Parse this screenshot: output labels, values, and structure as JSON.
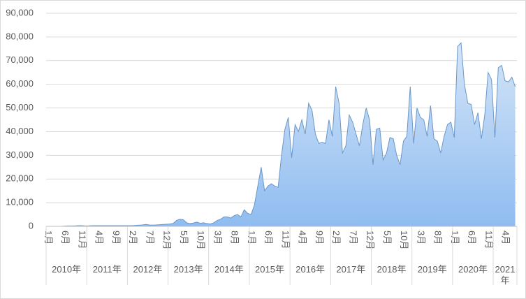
{
  "chart_data": {
    "type": "area",
    "categories": [
      "1月",
      null,
      null,
      null,
      null,
      "6月",
      null,
      null,
      null,
      null,
      "11月",
      null,
      null,
      null,
      null,
      "4月",
      null,
      null,
      null,
      null,
      "9月",
      null,
      null,
      null,
      null,
      "2月",
      null,
      null,
      null,
      null,
      "7月",
      null,
      null,
      null,
      null,
      "12月",
      null,
      null,
      null,
      null,
      "5月",
      null,
      null,
      null,
      null,
      "10月",
      null,
      null,
      null,
      null,
      "3月",
      null,
      null,
      null,
      null,
      "8月",
      null,
      null,
      null,
      null,
      "1月",
      null,
      null,
      null,
      null,
      "6月",
      null,
      null,
      null,
      null,
      "11月",
      null,
      null,
      null,
      null,
      "4月",
      null,
      null,
      null,
      null,
      "9月",
      null,
      null,
      null,
      null,
      "2月",
      null,
      null,
      null,
      null,
      "7月",
      null,
      null,
      null,
      null,
      "12月",
      null,
      null,
      null,
      null,
      "5月",
      null,
      null,
      null,
      null,
      "10月",
      null,
      null,
      null,
      null,
      "3月",
      null,
      null,
      null,
      null,
      "8月",
      null,
      null,
      null,
      null,
      "1月",
      null,
      null,
      null,
      null,
      "6月",
      null,
      null,
      null,
      null,
      "11月",
      null,
      null,
      null,
      null,
      "4月",
      null,
      null,
      null
    ],
    "year_groups": [
      {
        "label": "2010年",
        "months": 12
      },
      {
        "label": "2011年",
        "months": 12
      },
      {
        "label": "2012年",
        "months": 12
      },
      {
        "label": "2013年",
        "months": 12
      },
      {
        "label": "2014年",
        "months": 12
      },
      {
        "label": "2015年",
        "months": 12
      },
      {
        "label": "2016年",
        "months": 12
      },
      {
        "label": "2017年",
        "months": 12
      },
      {
        "label": "2018年",
        "months": 12
      },
      {
        "label": "2019年",
        "months": 12
      },
      {
        "label": "2020年",
        "months": 12
      },
      {
        "label": "2021年",
        "months": 7
      }
    ],
    "values": [
      0,
      0,
      0,
      0,
      0,
      100,
      200,
      200,
      200,
      300,
      300,
      200,
      200,
      300,
      300,
      300,
      300,
      300,
      300,
      300,
      300,
      300,
      300,
      300,
      300,
      300,
      400,
      500,
      600,
      800,
      600,
      500,
      600,
      700,
      800,
      900,
      1000,
      1200,
      2500,
      3000,
      2800,
      1500,
      1200,
      1400,
      1800,
      1300,
      1500,
      1200,
      1000,
      1500,
      2500,
      3000,
      4000,
      4000,
      3500,
      4500,
      5000,
      4000,
      7000,
      5500,
      5000,
      9000,
      17000,
      25000,
      15000,
      17000,
      18000,
      17000,
      16500,
      30000,
      41000,
      46000,
      29000,
      43000,
      40000,
      45000,
      39000,
      52000,
      49000,
      39000,
      35000,
      35500,
      35000,
      45000,
      38000,
      59000,
      52000,
      31000,
      34000,
      47000,
      44000,
      39000,
      34000,
      43000,
      50000,
      45000,
      26000,
      41000,
      41500,
      28000,
      31000,
      37500,
      37000,
      30000,
      26000,
      36000,
      38000,
      59000,
      35000,
      50000,
      46000,
      45000,
      38000,
      51000,
      37000,
      36000,
      31000,
      38000,
      43000,
      44000,
      37500,
      76000,
      77500,
      60000,
      52000,
      51500,
      43000,
      48000,
      37000,
      47000,
      65000,
      62000,
      37500,
      67000,
      68000,
      61500,
      61000,
      63000,
      59000
    ],
    "color": "#6a97c8",
    "fill_top": "#d5e5f8",
    "fill_bottom": "#8fbcf0",
    "ylim": [
      0,
      90000
    ],
    "yticks": [
      0,
      {
        "value": 10000,
        "label": "10,000"
      },
      {
        "value": 20000,
        "label": "20,000"
      },
      {
        "value": 30000,
        "label": "30,000"
      },
      {
        "value": 40000,
        "label": "40,000"
      },
      {
        "value": 50000,
        "label": "50,000"
      },
      {
        "value": 60000,
        "label": "60,000"
      },
      {
        "value": 70000,
        "label": "70,000"
      },
      {
        "value": 80000,
        "label": "80,000"
      },
      {
        "value": 90000,
        "label": "90,000"
      }
    ],
    "grid": true
  }
}
